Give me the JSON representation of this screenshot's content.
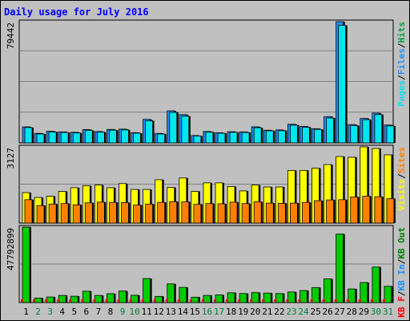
{
  "title": "Daily usage for July 2016",
  "colors": {
    "pages": "#00e5ee",
    "files": "#1e90ff",
    "hits": "#00a040",
    "visits": "#ffff00",
    "sites": "#ff8000",
    "kb_in": "#1e90ff",
    "kb_out": "#008000",
    "kbf": "#ff0000",
    "kb": "#00cc00",
    "panel_bg": "#c0c0c0",
    "day_weekday": "#000000",
    "day_weekend": "#008040"
  },
  "chart_data": [
    {
      "type": "bar",
      "id": "hits-files-pages",
      "scale_label": "79442",
      "ylim": [
        0,
        79442
      ],
      "categories": [
        "1",
        "2",
        "3",
        "4",
        "5",
        "6",
        "7",
        "8",
        "9",
        "10",
        "11",
        "12",
        "13",
        "14",
        "15",
        "16",
        "17",
        "18",
        "19",
        "20",
        "21",
        "22",
        "23",
        "24",
        "25",
        "26",
        "27",
        "28",
        "29",
        "30",
        "31"
      ],
      "legend": [
        {
          "text": "Pages",
          "color": "pages"
        },
        {
          "text": "/",
          "color": "sep"
        },
        {
          "text": "Files",
          "color": "files"
        },
        {
          "text": "/",
          "color": "sep"
        },
        {
          "text": "Hits",
          "color": "hits"
        }
      ],
      "series": [
        {
          "name": "Hits",
          "values": [
            10500,
            6200,
            7600,
            7200,
            6900,
            8700,
            7400,
            8800,
            9000,
            6700,
            15400,
            6200,
            21000,
            18500,
            4800,
            7400,
            6600,
            7300,
            7200,
            10500,
            8300,
            8500,
            12200,
            10800,
            9300,
            17200,
            79442,
            12000,
            16000,
            19500,
            11700
          ]
        },
        {
          "name": "Files",
          "values": [
            10000,
            5800,
            7100,
            6800,
            6500,
            8100,
            7000,
            8300,
            8500,
            6300,
            14500,
            5800,
            20000,
            17500,
            4500,
            7000,
            6300,
            6900,
            6800,
            9900,
            7900,
            8000,
            11600,
            10200,
            8800,
            16300,
            77000,
            11300,
            15200,
            18500,
            11100
          ]
        }
      ]
    },
    {
      "type": "bar",
      "id": "visits-sites",
      "scale_label": "3127",
      "ylim": [
        0,
        3127
      ],
      "categories": [
        "1",
        "2",
        "3",
        "4",
        "5",
        "6",
        "7",
        "8",
        "9",
        "10",
        "11",
        "12",
        "13",
        "14",
        "15",
        "16",
        "17",
        "18",
        "19",
        "20",
        "21",
        "22",
        "23",
        "24",
        "25",
        "26",
        "27",
        "28",
        "29",
        "30",
        "31"
      ],
      "legend": [
        {
          "text": "Visits",
          "color": "visits"
        },
        {
          "text": "/",
          "color": "sep"
        },
        {
          "text": "Sites",
          "color": "sites"
        }
      ],
      "series": [
        {
          "name": "Visits",
          "values": [
            1250,
            1050,
            1100,
            1300,
            1450,
            1530,
            1560,
            1450,
            1620,
            1380,
            1380,
            1780,
            1460,
            1850,
            1300,
            1650,
            1650,
            1500,
            1320,
            1560,
            1480,
            1480,
            2160,
            2160,
            2250,
            2400,
            2730,
            2700,
            3127,
            3060,
            2800
          ]
        },
        {
          "name": "Sites",
          "values": [
            960,
            720,
            780,
            800,
            750,
            830,
            860,
            850,
            840,
            740,
            780,
            850,
            880,
            870,
            770,
            800,
            790,
            860,
            800,
            870,
            820,
            810,
            820,
            850,
            920,
            950,
            960,
            1070,
            1100,
            1080,
            1000
          ]
        }
      ]
    },
    {
      "type": "bar",
      "id": "kbytes",
      "scale_label": "47792899",
      "ylim": [
        0,
        47792899
      ],
      "categories": [
        "1",
        "2",
        "3",
        "4",
        "5",
        "6",
        "7",
        "8",
        "9",
        "10",
        "11",
        "12",
        "13",
        "14",
        "15",
        "16",
        "17",
        "18",
        "19",
        "20",
        "21",
        "22",
        "23",
        "24",
        "25",
        "26",
        "27",
        "28",
        "29",
        "30",
        "31"
      ],
      "legend": [
        {
          "text": "KB F",
          "color": "kbf"
        },
        {
          "text": "/",
          "color": "sep"
        },
        {
          "text": "KB In",
          "color": "kb_in"
        },
        {
          "text": "/",
          "color": "sep"
        },
        {
          "text": "KB Out",
          "color": "kb_out"
        }
      ],
      "series": [
        {
          "name": "KBytes",
          "values": [
            47792899,
            2800000,
            3500000,
            4500000,
            4000000,
            7200000,
            4500000,
            5600000,
            7300000,
            4600000,
            15200000,
            3900000,
            11800000,
            9600000,
            3400000,
            4500000,
            4800000,
            6200000,
            5700000,
            6300000,
            6000000,
            5700000,
            6700000,
            7600000,
            9500000,
            15000000,
            43400000,
            8600000,
            12700000,
            22500000,
            10300000
          ]
        }
      ]
    }
  ],
  "weekend_days": [
    "2",
    "3",
    "9",
    "10",
    "16",
    "17",
    "23",
    "24",
    "30",
    "31"
  ]
}
